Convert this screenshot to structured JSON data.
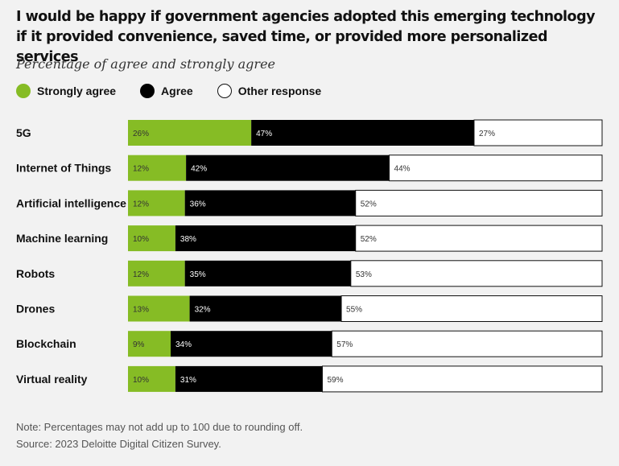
{
  "title": "I would be happy if government agencies adopted this emerging technology if it provided convenience, saved time, or provided more personalized services",
  "subtitle": "Percentage of agree and strongly agree",
  "legend": {
    "strongly_agree": "Strongly agree",
    "agree": "Agree",
    "other": "Other response"
  },
  "colors": {
    "strongly_agree": "#86bc25",
    "agree": "#000000",
    "other": "#ffffff"
  },
  "chart_data": {
    "type": "bar",
    "orientation": "horizontal",
    "stacked": true,
    "unit": "%",
    "categories": [
      "5G",
      "Internet of Things",
      "Artificial intelligence",
      "Machine learning",
      "Robots",
      "Drones",
      "Blockchain",
      "Virtual reality"
    ],
    "series": [
      {
        "name": "Strongly agree",
        "values": [
          26,
          12,
          12,
          10,
          12,
          13,
          9,
          10
        ]
      },
      {
        "name": "Agree",
        "values": [
          47,
          42,
          36,
          38,
          35,
          32,
          34,
          31
        ]
      },
      {
        "name": "Other response",
        "values": [
          27,
          44,
          52,
          52,
          53,
          55,
          57,
          59
        ]
      }
    ],
    "xlim": [
      0,
      100
    ],
    "legend_position": "top-left",
    "grid": false
  },
  "notes": {
    "note": "Note: Percentages may not add up to 100 due to rounding off.",
    "source": "Source: 2023 Deloitte Digital Citizen Survey."
  }
}
